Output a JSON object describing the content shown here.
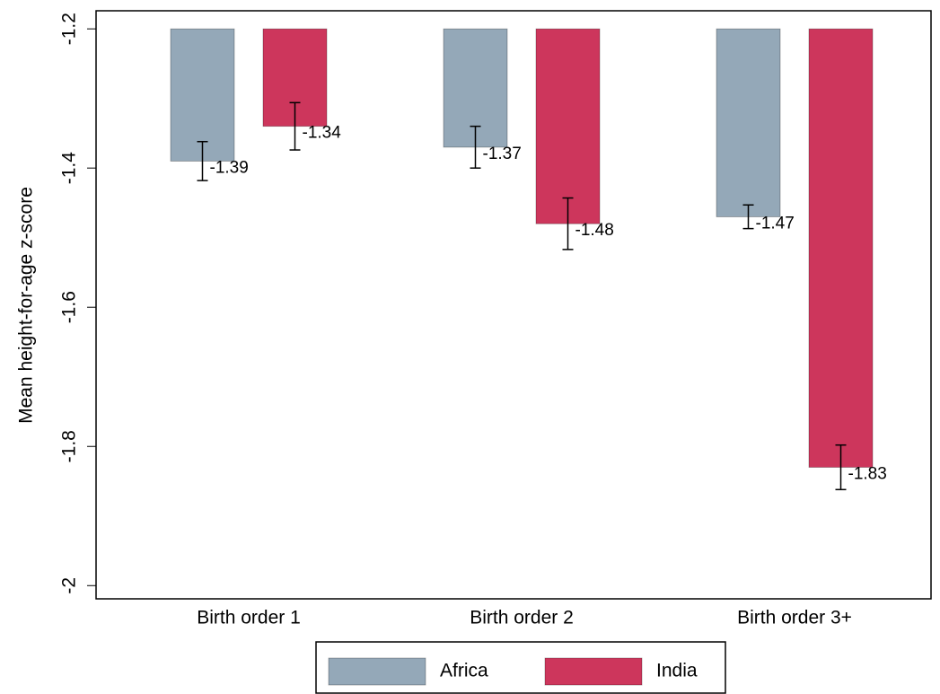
{
  "chart_data": {
    "type": "bar",
    "y_label": "Mean height-for-age z-score",
    "categories": [
      "Birth order 1",
      "Birth order 2",
      "Birth order 3+"
    ],
    "series": [
      {
        "name": "Africa",
        "color": "#94a8b8",
        "values": [
          -1.39,
          -1.37,
          -1.47
        ],
        "errors": [
          0.028,
          0.03,
          0.017
        ]
      },
      {
        "name": "India",
        "color": "#cd365c",
        "values": [
          -1.34,
          -1.48,
          -1.83
        ],
        "errors": [
          0.034,
          0.037,
          0.032
        ]
      }
    ],
    "base": -1.2,
    "ylim": [
      -2.019,
      -1.174
    ],
    "yticks": [
      -2,
      -1.8,
      -1.6,
      -1.4,
      -1.2
    ],
    "grid": false,
    "legend": "bottom"
  }
}
